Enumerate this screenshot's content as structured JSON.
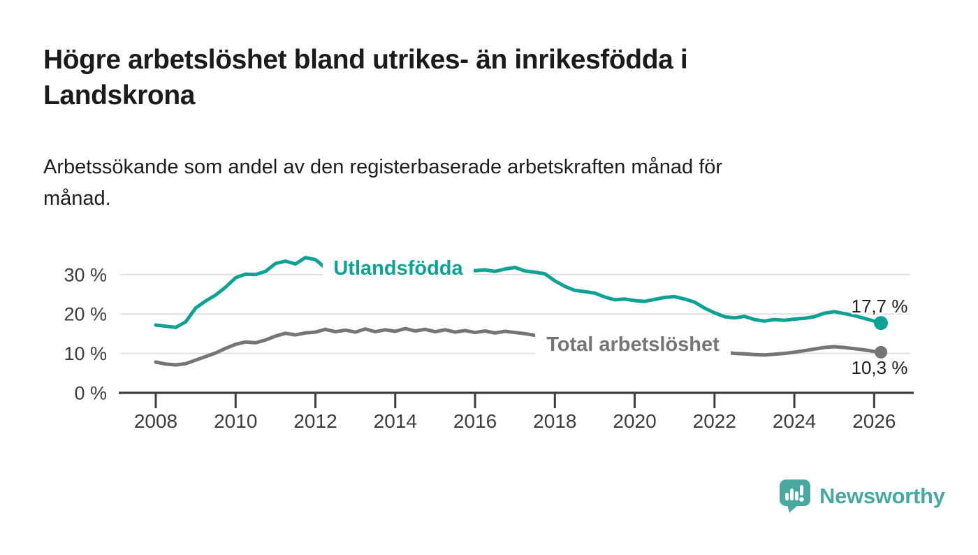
{
  "header": {
    "title": "Högre arbetslöshet bland utrikes- än inrikesfödda i Landskrona",
    "title_line1": "Högre arbetslöshet bland utrikes- än inrikesfödda i",
    "title_line2": "Landskrona",
    "subtitle": "Arbetssökande som andel av den registerbaserade arbetskraften månad för månad.",
    "subtitle_line1": "Arbetssökande som andel av den registerbaserade arbetskraften månad för",
    "subtitle_line2": "månad."
  },
  "branding": {
    "logo_text": "Newsworthy",
    "logo_color": "#4ba8a0",
    "logo_icon": "speech-bubble-bar-chart-icon"
  },
  "colors": {
    "series_foreign_born": "#0fa294",
    "series_total": "#757575",
    "axis_text": "#3d3d3d",
    "gridline": "#e2dfdf",
    "value_label_text": "#1d1d1b",
    "background": "#ffffff"
  },
  "chart_data": {
    "type": "line",
    "title": "Högre arbetslöshet bland utrikes- än inrikesfödda i Landskrona",
    "subtitle": "Arbetssökande som andel av den registerbaserade arbetskraften månad för månad.",
    "unit": "%",
    "x_unit": "decimal_year",
    "grid": "horizontal",
    "legend_position": "inline-labels",
    "xlim": [
      2007.1,
      2027.0
    ],
    "ylim": [
      0,
      35
    ],
    "xticks": [
      {
        "value": 2008,
        "label": "2008"
      },
      {
        "value": 2010,
        "label": "2010"
      },
      {
        "value": 2012,
        "label": "2012"
      },
      {
        "value": 2014,
        "label": "2014"
      },
      {
        "value": 2016,
        "label": "2016"
      },
      {
        "value": 2018,
        "label": "2018"
      },
      {
        "value": 2020,
        "label": "2020"
      },
      {
        "value": 2022,
        "label": "2022"
      },
      {
        "value": 2024,
        "label": "2024"
      },
      {
        "value": 2026,
        "label": "2026"
      }
    ],
    "yticks": [
      {
        "value": 0,
        "label": "0 %"
      },
      {
        "value": 10,
        "label": "10 %"
      },
      {
        "value": 20,
        "label": "20 %"
      },
      {
        "value": 30,
        "label": "30 %"
      }
    ],
    "x": [
      2008,
      2008.25,
      2008.5,
      2008.75,
      2009,
      2009.25,
      2009.5,
      2009.75,
      2010,
      2010.25,
      2010.5,
      2010.75,
      2011,
      2011.25,
      2011.5,
      2011.75,
      2012,
      2012.25,
      2012.5,
      2012.75,
      2013,
      2013.25,
      2013.5,
      2013.75,
      2014,
      2014.25,
      2014.5,
      2014.75,
      2015,
      2015.25,
      2015.5,
      2015.75,
      2016,
      2016.25,
      2016.5,
      2016.75,
      2017,
      2017.25,
      2017.5,
      2017.75,
      2018,
      2018.25,
      2018.5,
      2018.75,
      2019,
      2019.25,
      2019.5,
      2019.75,
      2020,
      2020.25,
      2020.5,
      2020.75,
      2021,
      2021.25,
      2021.5,
      2021.75,
      2022,
      2022.25,
      2022.5,
      2022.75,
      2023,
      2023.25,
      2023.5,
      2023.75,
      2024,
      2024.25,
      2024.5,
      2024.75,
      2025,
      2025.25,
      2025.5,
      2025.75,
      2026,
      2026.17
    ],
    "series": [
      {
        "name": "Utlandsfödda",
        "color": "#0fa294",
        "end_value_label": "17,7 %",
        "end_value": 17.7,
        "values": [
          17.2,
          16.9,
          16.6,
          18.0,
          21.5,
          23.3,
          24.8,
          26.8,
          29.2,
          30.1,
          30.0,
          30.8,
          32.8,
          33.4,
          32.7,
          34.3,
          33.8,
          31.7,
          32.9,
          32.2,
          32.4,
          31.7,
          31.3,
          31.9,
          31.5,
          31.9,
          31.2,
          31.6,
          31.4,
          31.7,
          31.1,
          31.3,
          31.0,
          31.2,
          30.8,
          31.4,
          31.8,
          30.9,
          30.6,
          30.2,
          28.4,
          27.0,
          26.0,
          25.7,
          25.3,
          24.3,
          23.6,
          23.8,
          23.4,
          23.2,
          23.7,
          24.2,
          24.4,
          23.8,
          23.0,
          21.5,
          20.3,
          19.3,
          19.0,
          19.4,
          18.6,
          18.2,
          18.6,
          18.4,
          18.7,
          18.9,
          19.3,
          20.2,
          20.6,
          20.1,
          19.6,
          18.9,
          18.2,
          17.7
        ]
      },
      {
        "name": "Total arbetslöshet",
        "color": "#757575",
        "end_value_label": "10,3 %",
        "end_value": 10.3,
        "values": [
          7.8,
          7.3,
          7.1,
          7.4,
          8.3,
          9.2,
          10.1,
          11.3,
          12.3,
          12.9,
          12.7,
          13.4,
          14.4,
          15.1,
          14.7,
          15.2,
          15.4,
          16.1,
          15.5,
          15.9,
          15.4,
          16.2,
          15.5,
          16.0,
          15.6,
          16.3,
          15.7,
          16.1,
          15.5,
          16.0,
          15.4,
          15.8,
          15.3,
          15.7,
          15.2,
          15.6,
          15.3,
          15.0,
          14.6,
          14.3,
          13.9,
          13.4,
          13.0,
          12.7,
          12.4,
          12.1,
          11.9,
          12.0,
          12.2,
          12.6,
          12.4,
          12.1,
          11.8,
          11.4,
          11.0,
          10.7,
          10.5,
          10.3,
          10.0,
          9.9,
          9.7,
          9.6,
          9.8,
          10.0,
          10.3,
          10.7,
          11.1,
          11.5,
          11.7,
          11.5,
          11.2,
          10.9,
          10.5,
          10.3
        ]
      }
    ]
  }
}
